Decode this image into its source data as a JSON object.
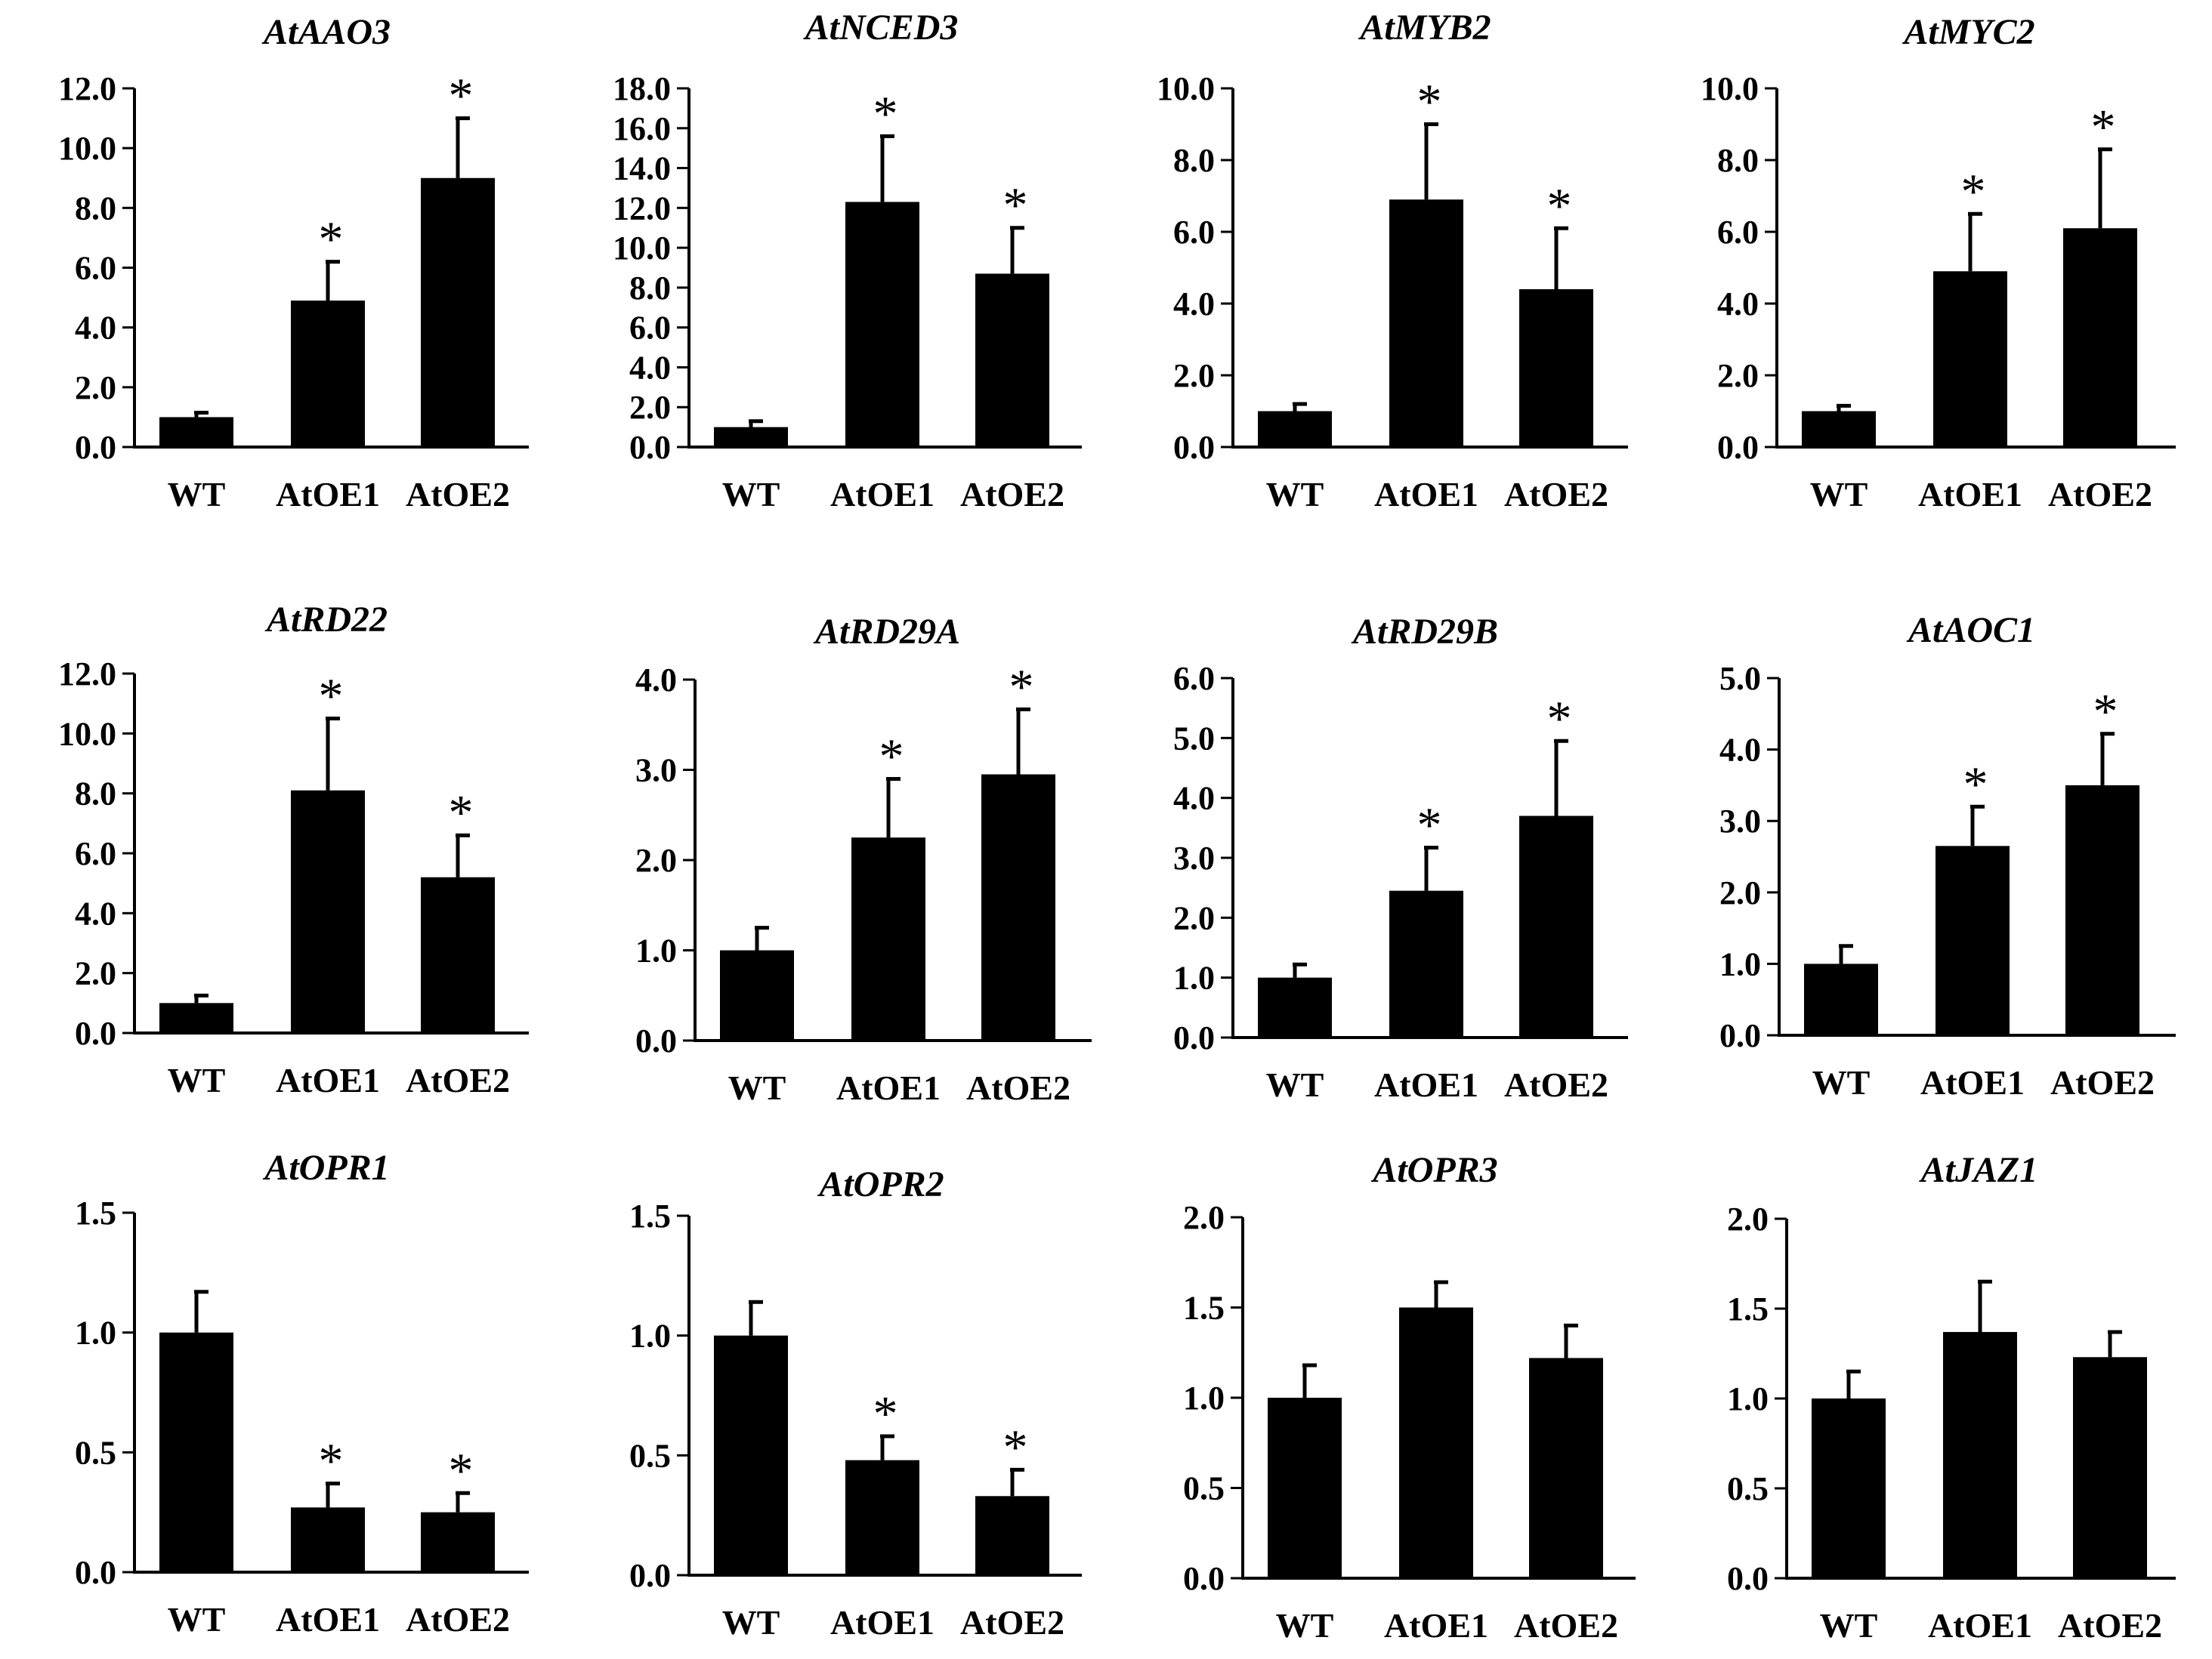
{
  "colors": {
    "bar": "#000000",
    "axis": "#000000",
    "background": "#ffffff"
  },
  "chart_data": [
    {
      "type": "bar",
      "title": "AtAAO3",
      "categories": [
        "WT",
        "AtOE1",
        "AtOE2"
      ],
      "values": [
        1.0,
        4.9,
        9.0
      ],
      "errors": [
        0.15,
        1.3,
        2.0
      ],
      "significant": [
        false,
        true,
        true
      ],
      "ylim": [
        0,
        12
      ],
      "yticks": [
        "0.0",
        "2.0",
        "4.0",
        "6.0",
        "8.0",
        "10.0",
        "12.0"
      ],
      "xlabel": "",
      "ylabel": ""
    },
    {
      "type": "bar",
      "title": "AtNCED3",
      "categories": [
        "WT",
        "AtOE1",
        "AtOE2"
      ],
      "values": [
        1.0,
        12.3,
        8.7
      ],
      "errors": [
        0.3,
        3.3,
        2.3
      ],
      "significant": [
        false,
        true,
        true
      ],
      "ylim": [
        0,
        18
      ],
      "yticks": [
        "0.0",
        "2.0",
        "4.0",
        "6.0",
        "8.0",
        "10.0",
        "12.0",
        "14.0",
        "16.0",
        "18.0"
      ],
      "xlabel": "",
      "ylabel": ""
    },
    {
      "type": "bar",
      "title": "AtMYB2",
      "categories": [
        "WT",
        "AtOE1",
        "AtOE2"
      ],
      "values": [
        1.0,
        6.9,
        4.4
      ],
      "errors": [
        0.2,
        2.1,
        1.7
      ],
      "significant": [
        false,
        true,
        true
      ],
      "ylim": [
        0,
        10
      ],
      "yticks": [
        "0.0",
        "2.0",
        "4.0",
        "6.0",
        "8.0",
        "10.0"
      ],
      "xlabel": "",
      "ylabel": ""
    },
    {
      "type": "bar",
      "title": "AtMYC2",
      "categories": [
        "WT",
        "AtOE1",
        "AtOE2"
      ],
      "values": [
        1.0,
        4.9,
        6.1
      ],
      "errors": [
        0.15,
        1.6,
        2.2
      ],
      "significant": [
        false,
        true,
        true
      ],
      "ylim": [
        0,
        10
      ],
      "yticks": [
        "0.0",
        "2.0",
        "4.0",
        "6.0",
        "8.0",
        "10.0"
      ],
      "xlabel": "",
      "ylabel": ""
    },
    {
      "type": "bar",
      "title": "AtRD22",
      "categories": [
        "WT",
        "AtOE1",
        "AtOE2"
      ],
      "values": [
        1.0,
        8.1,
        5.2
      ],
      "errors": [
        0.25,
        2.4,
        1.4
      ],
      "significant": [
        false,
        true,
        true
      ],
      "ylim": [
        0,
        12
      ],
      "yticks": [
        "0.0",
        "2.0",
        "4.0",
        "6.0",
        "8.0",
        "10.0",
        "12.0"
      ],
      "xlabel": "",
      "ylabel": ""
    },
    {
      "type": "bar",
      "title": "AtRD29A",
      "categories": [
        "WT",
        "AtOE1",
        "AtOE2"
      ],
      "values": [
        1.0,
        2.25,
        2.95
      ],
      "errors": [
        0.25,
        0.65,
        0.72
      ],
      "significant": [
        false,
        true,
        true
      ],
      "ylim": [
        0,
        4
      ],
      "yticks": [
        "0.0",
        "1.0",
        "2.0",
        "3.0",
        "4.0"
      ],
      "xlabel": "",
      "ylabel": ""
    },
    {
      "type": "bar",
      "title": "AtRD29B",
      "categories": [
        "WT",
        "AtOE1",
        "AtOE2"
      ],
      "values": [
        1.0,
        2.45,
        3.7
      ],
      "errors": [
        0.22,
        0.72,
        1.25
      ],
      "significant": [
        false,
        true,
        true
      ],
      "ylim": [
        0,
        6
      ],
      "yticks": [
        "0.0",
        "1.0",
        "2.0",
        "3.0",
        "4.0",
        "5.0",
        "6.0"
      ],
      "xlabel": "",
      "ylabel": ""
    },
    {
      "type": "bar",
      "title": "AtAOC1",
      "categories": [
        "WT",
        "AtOE1",
        "AtOE2"
      ],
      "values": [
        1.0,
        2.65,
        3.5
      ],
      "errors": [
        0.25,
        0.55,
        0.72
      ],
      "significant": [
        false,
        true,
        true
      ],
      "ylim": [
        0,
        5
      ],
      "yticks": [
        "0.0",
        "1.0",
        "2.0",
        "3.0",
        "4.0",
        "5.0"
      ],
      "xlabel": "",
      "ylabel": ""
    },
    {
      "type": "bar",
      "title": "AtOPR1",
      "categories": [
        "WT",
        "AtOE1",
        "AtOE2"
      ],
      "values": [
        1.0,
        0.27,
        0.25
      ],
      "errors": [
        0.17,
        0.1,
        0.08
      ],
      "significant": [
        false,
        true,
        true
      ],
      "ylim": [
        0,
        1.5
      ],
      "yticks": [
        "0.0",
        "0.5",
        "1.0",
        "1.5"
      ],
      "xlabel": "",
      "ylabel": ""
    },
    {
      "type": "bar",
      "title": "AtOPR2",
      "categories": [
        "WT",
        "AtOE1",
        "AtOE2"
      ],
      "values": [
        1.0,
        0.48,
        0.33
      ],
      "errors": [
        0.14,
        0.1,
        0.11
      ],
      "significant": [
        false,
        true,
        true
      ],
      "ylim": [
        0,
        1.5
      ],
      "yticks": [
        "0.0",
        "0.5",
        "1.0",
        "1.5"
      ],
      "xlabel": "",
      "ylabel": ""
    },
    {
      "type": "bar",
      "title": "AtOPR3",
      "categories": [
        "WT",
        "AtOE1",
        "AtOE2"
      ],
      "values": [
        1.0,
        1.5,
        1.22
      ],
      "errors": [
        0.18,
        0.14,
        0.18
      ],
      "significant": [
        false,
        false,
        false
      ],
      "ylim": [
        0,
        2
      ],
      "yticks": [
        "0.0",
        "0.5",
        "1.0",
        "1.5",
        "2.0"
      ],
      "xlabel": "",
      "ylabel": ""
    },
    {
      "type": "bar",
      "title": "AtJAZ1",
      "categories": [
        "WT",
        "AtOE1",
        "AtOE2"
      ],
      "values": [
        1.0,
        1.37,
        1.23
      ],
      "errors": [
        0.15,
        0.28,
        0.14
      ],
      "significant": [
        false,
        false,
        false
      ],
      "ylim": [
        0,
        2
      ],
      "yticks": [
        "0.0",
        "0.5",
        "1.0",
        "1.5",
        "2.0"
      ],
      "xlabel": "",
      "ylabel": ""
    }
  ]
}
